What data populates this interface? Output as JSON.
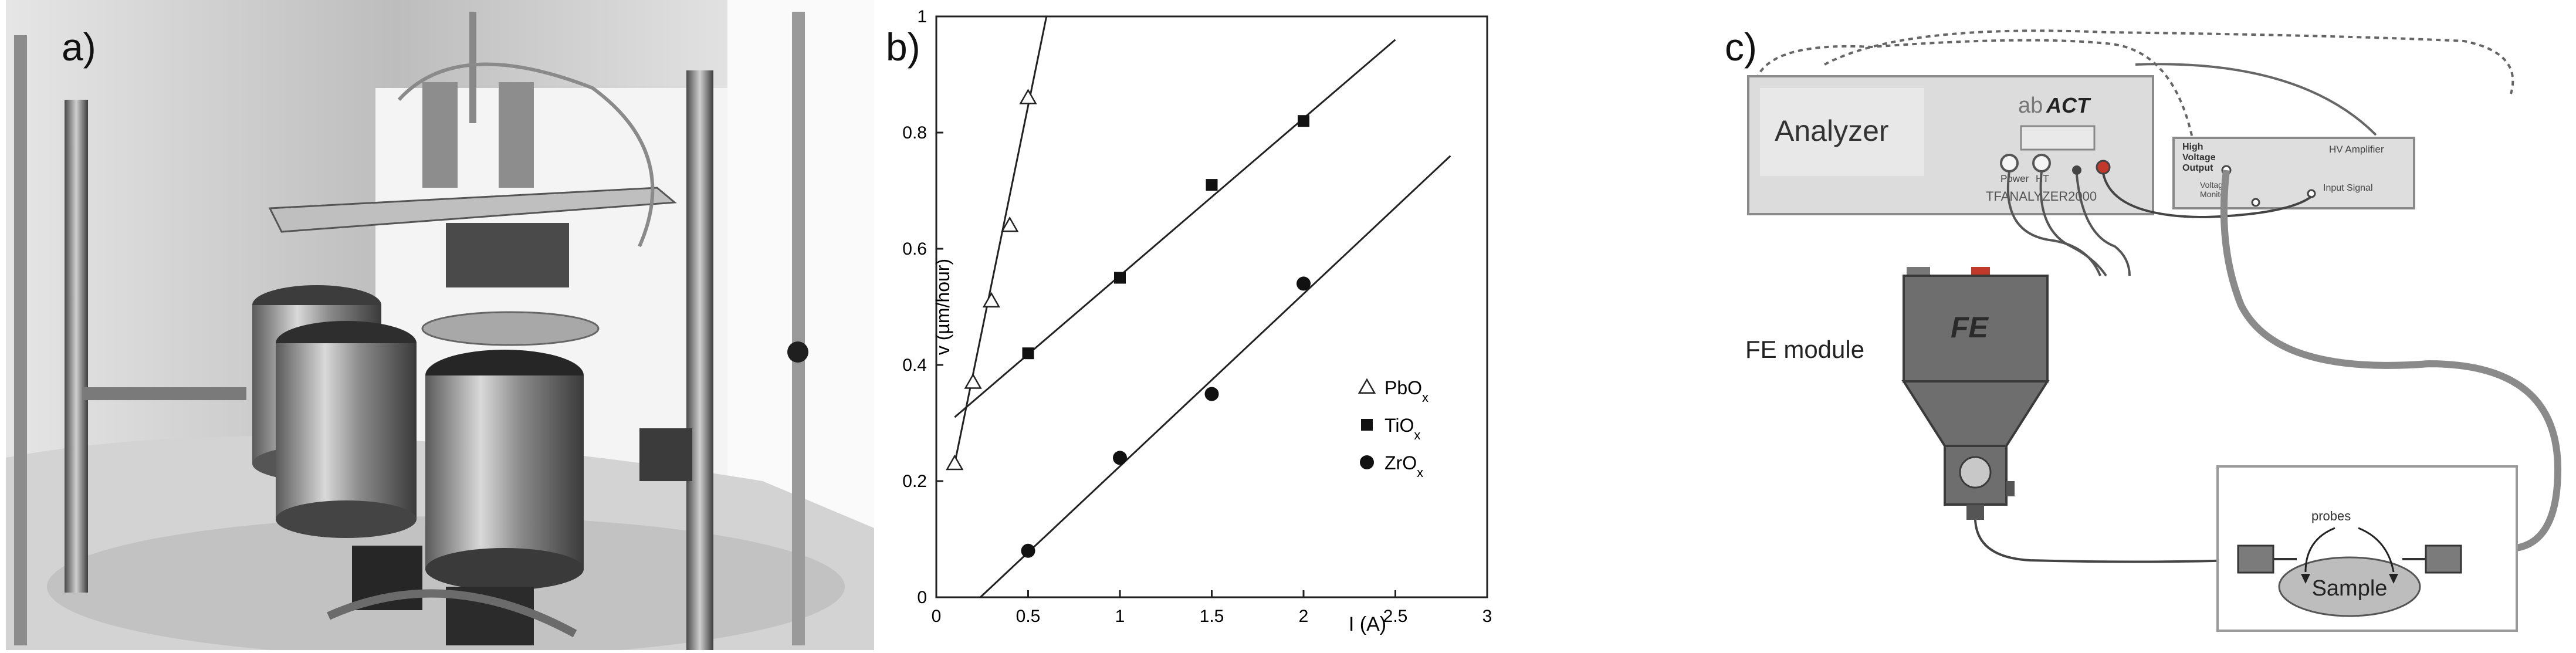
{
  "panels": {
    "a": {
      "label": "a)"
    },
    "b": {
      "label": "b)"
    },
    "c": {
      "label": "c)"
    }
  },
  "chart_data": {
    "type": "scatter",
    "xlabel": "I (A)",
    "ylabel": "v (µm/hour)",
    "xlim": [
      0,
      3
    ],
    "ylim": [
      0,
      1
    ],
    "xticks": [
      "0",
      "0.5",
      "1",
      "1.5",
      "2",
      "2.5",
      "3"
    ],
    "yticks": [
      "0",
      "0.2",
      "0.4",
      "0.6",
      "0.8",
      "1"
    ],
    "grid": false,
    "legend_position": "bottom-right",
    "series": [
      {
        "name": "PbOx",
        "marker": "open-triangle",
        "x": [
          0.1,
          0.2,
          0.3,
          0.4,
          0.5
        ],
        "y": [
          0.23,
          0.37,
          0.51,
          0.64,
          0.86
        ],
        "fit": [
          [
            0.1,
            0.23
          ],
          [
            0.6,
            1.0
          ]
        ]
      },
      {
        "name": "TiOx",
        "marker": "filled-square",
        "x": [
          0.5,
          1.0,
          1.5,
          2.0
        ],
        "y": [
          0.42,
          0.55,
          0.71,
          0.82
        ],
        "fit": [
          [
            0.1,
            0.31
          ],
          [
            2.5,
            0.96
          ]
        ]
      },
      {
        "name": "ZrOx",
        "marker": "filled-circle",
        "x": [
          0.5,
          1.0,
          1.5,
          2.0
        ],
        "y": [
          0.08,
          0.24,
          0.35,
          0.54
        ],
        "fit": [
          [
            0.24,
            0.0
          ],
          [
            2.8,
            0.76
          ]
        ]
      }
    ]
  },
  "diagram": {
    "analyzer": {
      "name": "Analyzer",
      "logo_prefix": "ab",
      "logo_emph": "ACT",
      "model": "TFANALYZER2000",
      "port_labels": [
        "Power",
        "HT"
      ]
    },
    "amplifier": {
      "title": "HV Amplifier",
      "output_label_lines": [
        "High",
        "Voltage",
        "Output"
      ],
      "monitor_label_lines": [
        "Voltage",
        "Monitor"
      ],
      "input_label": "Input Signal"
    },
    "fe_module": {
      "label": "FE module",
      "badge": "FE"
    },
    "sample": {
      "label": "Sample",
      "probes_label": "probes"
    }
  }
}
